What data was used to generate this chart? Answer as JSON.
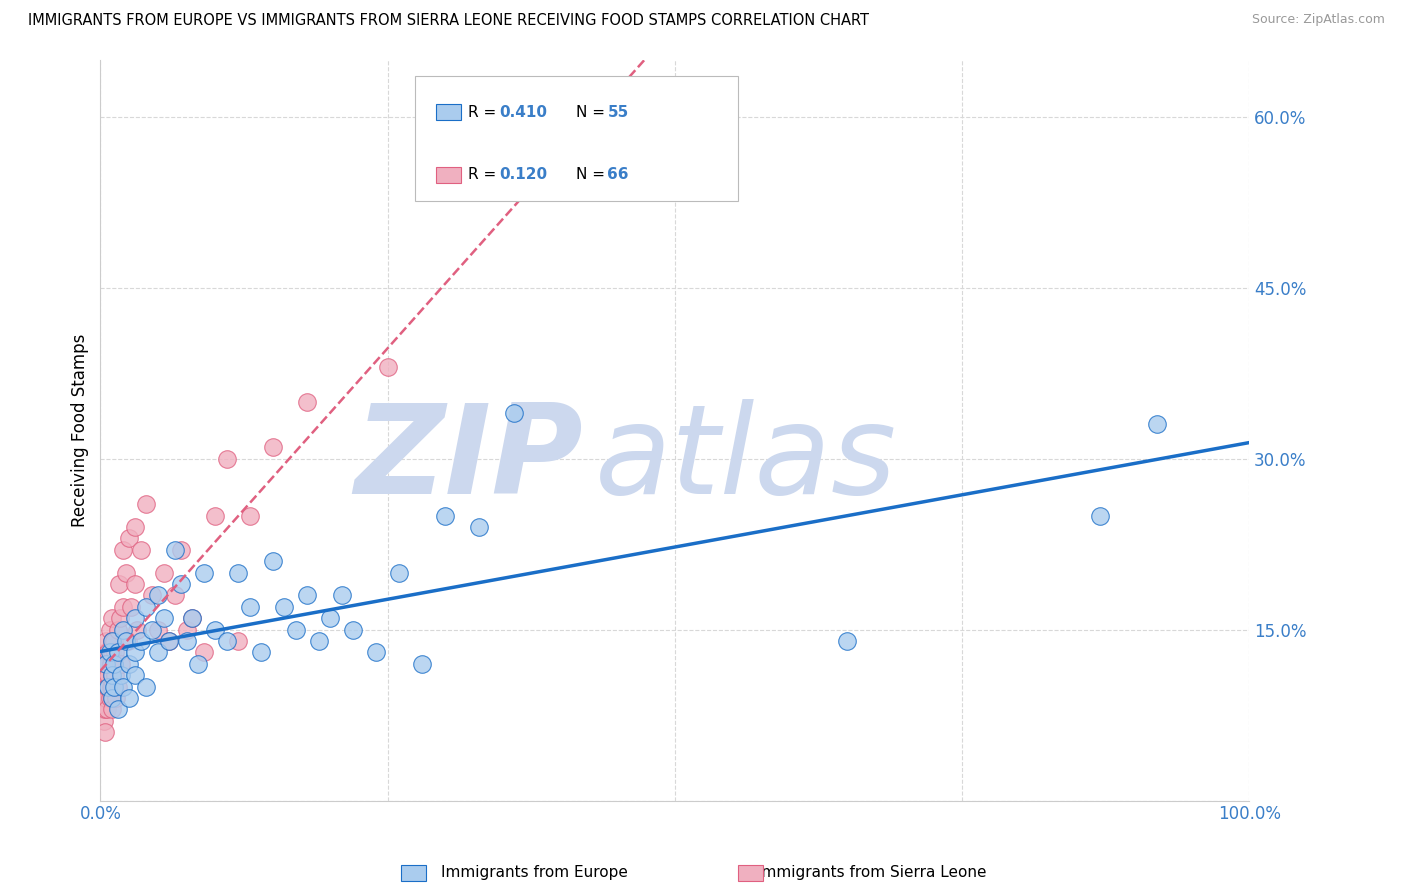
{
  "title": "IMMIGRANTS FROM EUROPE VS IMMIGRANTS FROM SIERRA LEONE RECEIVING FOOD STAMPS CORRELATION CHART",
  "source": "Source: ZipAtlas.com",
  "ylabel": "Receiving Food Stamps",
  "r_blue": 0.41,
  "n_blue": 55,
  "r_pink": 0.12,
  "n_pink": 66,
  "blue_label": "Immigrants from Europe",
  "pink_label": "Immigrants from Sierra Leone",
  "xlim": [
    0.0,
    1.0
  ],
  "ylim": [
    0.0,
    0.65
  ],
  "yticks": [
    0.0,
    0.15,
    0.3,
    0.45,
    0.6
  ],
  "ytick_labels": [
    "",
    "15.0%",
    "30.0%",
    "45.0%",
    "60.0%"
  ],
  "xticks": [
    0.0,
    0.25,
    0.5,
    0.75,
    1.0
  ],
  "xtick_labels": [
    "0.0%",
    "",
    "",
    "",
    "100.0%"
  ],
  "blue_scatter_x": [
    0.005,
    0.007,
    0.008,
    0.01,
    0.01,
    0.01,
    0.012,
    0.012,
    0.015,
    0.015,
    0.018,
    0.02,
    0.02,
    0.022,
    0.025,
    0.025,
    0.03,
    0.03,
    0.03,
    0.035,
    0.04,
    0.04,
    0.045,
    0.05,
    0.05,
    0.055,
    0.06,
    0.065,
    0.07,
    0.075,
    0.08,
    0.085,
    0.09,
    0.1,
    0.11,
    0.12,
    0.13,
    0.14,
    0.15,
    0.16,
    0.17,
    0.18,
    0.19,
    0.2,
    0.21,
    0.22,
    0.24,
    0.26,
    0.28,
    0.3,
    0.33,
    0.36,
    0.65,
    0.87,
    0.92
  ],
  "blue_scatter_y": [
    0.12,
    0.1,
    0.13,
    0.09,
    0.11,
    0.14,
    0.1,
    0.12,
    0.08,
    0.13,
    0.11,
    0.15,
    0.1,
    0.14,
    0.12,
    0.09,
    0.16,
    0.11,
    0.13,
    0.14,
    0.17,
    0.1,
    0.15,
    0.18,
    0.13,
    0.16,
    0.14,
    0.22,
    0.19,
    0.14,
    0.16,
    0.12,
    0.2,
    0.15,
    0.14,
    0.2,
    0.17,
    0.13,
    0.21,
    0.17,
    0.15,
    0.18,
    0.14,
    0.16,
    0.18,
    0.15,
    0.13,
    0.2,
    0.12,
    0.25,
    0.24,
    0.34,
    0.14,
    0.25,
    0.33
  ],
  "pink_scatter_x": [
    0.002,
    0.002,
    0.003,
    0.003,
    0.003,
    0.004,
    0.004,
    0.004,
    0.005,
    0.005,
    0.005,
    0.005,
    0.005,
    0.006,
    0.006,
    0.006,
    0.007,
    0.007,
    0.008,
    0.008,
    0.009,
    0.009,
    0.01,
    0.01,
    0.01,
    0.01,
    0.01,
    0.01,
    0.01,
    0.012,
    0.012,
    0.013,
    0.013,
    0.014,
    0.015,
    0.015,
    0.016,
    0.017,
    0.018,
    0.02,
    0.02,
    0.022,
    0.024,
    0.025,
    0.027,
    0.03,
    0.03,
    0.032,
    0.035,
    0.04,
    0.045,
    0.05,
    0.055,
    0.06,
    0.065,
    0.07,
    0.075,
    0.08,
    0.09,
    0.1,
    0.11,
    0.12,
    0.13,
    0.15,
    0.18,
    0.25
  ],
  "pink_scatter_y": [
    0.08,
    0.1,
    0.07,
    0.09,
    0.11,
    0.08,
    0.06,
    0.12,
    0.1,
    0.13,
    0.09,
    0.11,
    0.14,
    0.1,
    0.12,
    0.08,
    0.13,
    0.11,
    0.09,
    0.15,
    0.1,
    0.12,
    0.14,
    0.09,
    0.11,
    0.13,
    0.08,
    0.16,
    0.1,
    0.12,
    0.14,
    0.11,
    0.13,
    0.09,
    0.15,
    0.1,
    0.19,
    0.16,
    0.12,
    0.22,
    0.17,
    0.2,
    0.14,
    0.23,
    0.17,
    0.19,
    0.24,
    0.15,
    0.22,
    0.26,
    0.18,
    0.15,
    0.2,
    0.14,
    0.18,
    0.22,
    0.15,
    0.16,
    0.13,
    0.25,
    0.3,
    0.14,
    0.25,
    0.31,
    0.35,
    0.38
  ],
  "blue_line_color": "#1a6ec7",
  "pink_line_color": "#e06080",
  "blue_scatter_facecolor": "#aaccee",
  "pink_scatter_facecolor": "#f0b0c0",
  "grid_color": "#d8d8d8",
  "watermark_color": "#ccd8ee",
  "title_fontsize": 10.5,
  "tick_color": "#3a7ec8",
  "legend_r_color": "#3a7ec8"
}
